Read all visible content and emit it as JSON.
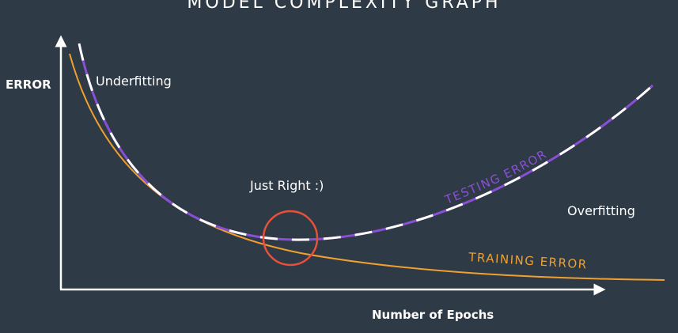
{
  "diagram": {
    "title": "MODEL COMPLEXITY GRAPH",
    "y_axis_label": "ERROR",
    "x_axis_label": "Number of Epochs",
    "annotations": {
      "underfitting": "Underfitting",
      "just_right": "Just Right :)",
      "overfitting": "Overfitting"
    },
    "curves": {
      "testing": {
        "label": "TESTING ERROR",
        "colors": [
          "#8a4fd6",
          "#ffffff"
        ]
      },
      "training": {
        "label": "TRAINING ERROR",
        "color": "#f0a030"
      }
    },
    "marker_color": "#e8503a",
    "axis_color": "#ffffff",
    "background": "#2e3a45"
  }
}
